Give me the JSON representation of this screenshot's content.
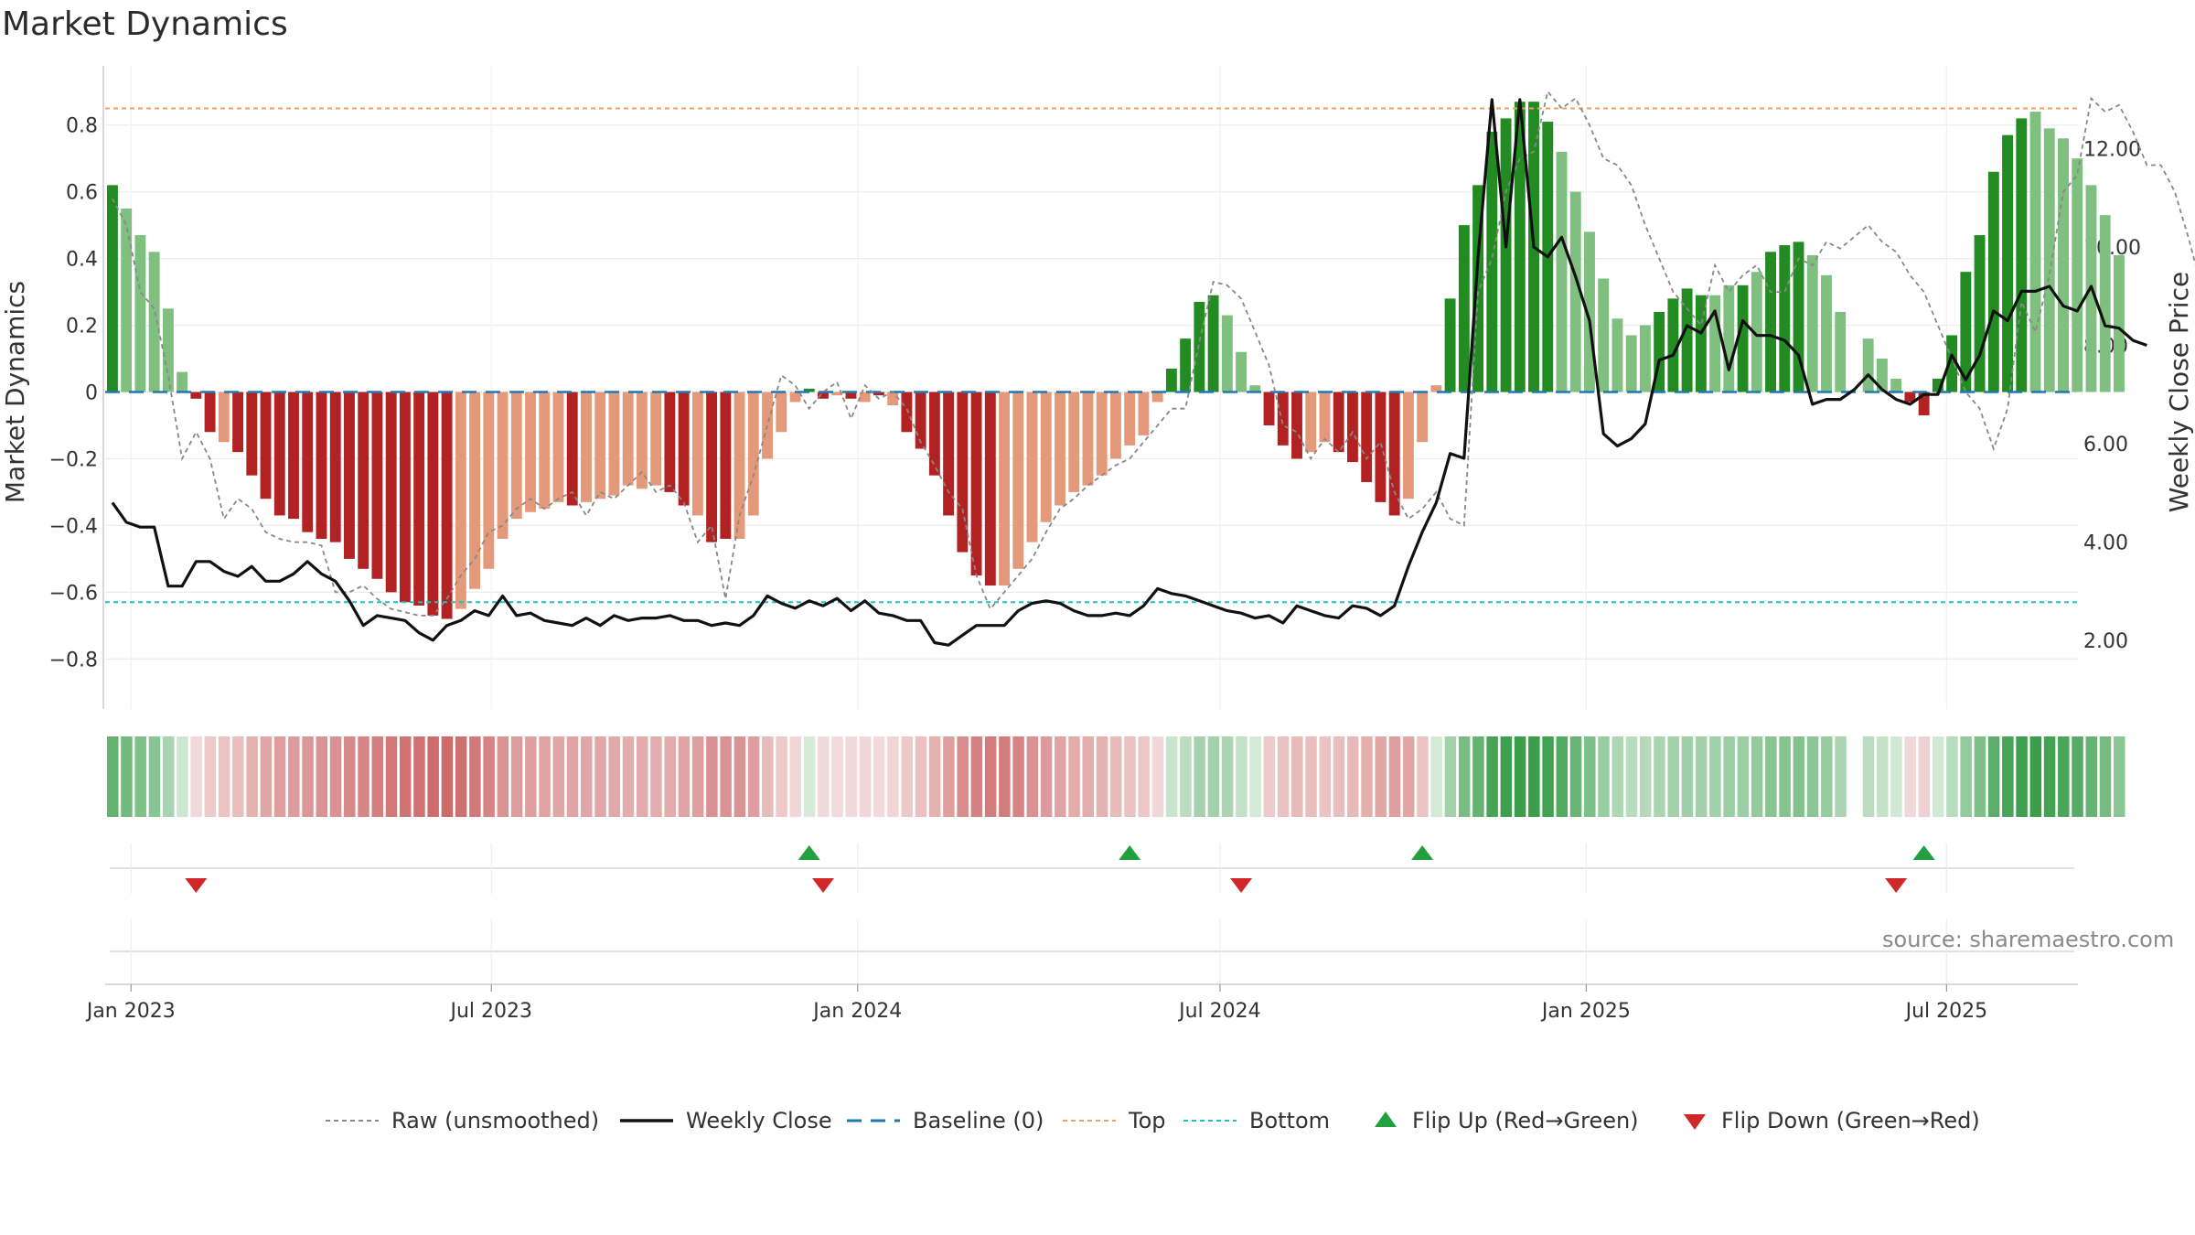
{
  "title": "Market Dynamics",
  "source": "source: sharemaestro.com",
  "colors": {
    "strong_green": "#228b22",
    "light_green": "#7fbf7f",
    "strong_red": "#b22222",
    "light_red": "#e49a7a",
    "close_line": "#111111",
    "raw_line": "#888888",
    "baseline": "#1f77b4",
    "top": "#f0a060",
    "bottom": "#20c0c0",
    "flip_up": "#22a040",
    "flip_down": "#d02828"
  },
  "chart_data": {
    "type": "bar",
    "title": "Market Dynamics",
    "ylabel": "Market Dynamics",
    "y2label": "Weekly Close Price",
    "ylim": [
      -0.95,
      0.95
    ],
    "y2lim": [
      0.6,
      13.5
    ],
    "y_ticks": [
      -0.8,
      -0.6,
      -0.4,
      -0.2,
      0,
      0.2,
      0.4,
      0.6,
      0.8
    ],
    "y_tick_labels": [
      "−0.8",
      "−0.6",
      "−0.4",
      "−0.2",
      "0",
      "0.2",
      "0.4",
      "0.6",
      "0.8"
    ],
    "y2_ticks": [
      2,
      4,
      6,
      8,
      10,
      12
    ],
    "y2_tick_labels": [
      "2.00",
      "4.00",
      "6.00",
      "8.00",
      "10.00",
      "12.00"
    ],
    "x_range": [
      "2022-12-19",
      "2025-09-05"
    ],
    "x_ticks": [
      {
        "date": "2023-01-01",
        "label": "Jan 2023"
      },
      {
        "date": "2023-07-01",
        "label": "Jul 2023"
      },
      {
        "date": "2024-01-01",
        "label": "Jan 2024"
      },
      {
        "date": "2024-07-01",
        "label": "Jul 2024"
      },
      {
        "date": "2025-01-01",
        "label": "Jan 2025"
      },
      {
        "date": "2025-07-01",
        "label": "Jul 2025"
      }
    ],
    "grid": true,
    "legend_position": "bottom",
    "reference_lines": {
      "baseline": 0,
      "top": 0.85,
      "bottom": -0.63
    },
    "series": [
      {
        "name": "Raw (unsmoothed)",
        "start": "2022-12-19",
        "step_days": 7,
        "missing_index": 125,
        "values": [
          0.58,
          0.5,
          0.3,
          0.25,
          0.05,
          -0.2,
          -0.12,
          -0.2,
          -0.38,
          -0.32,
          -0.35,
          -0.42,
          -0.44,
          -0.45,
          -0.45,
          -0.46,
          -0.6,
          -0.6,
          -0.58,
          -0.62,
          -0.65,
          -0.66,
          -0.67,
          -0.67,
          -0.62,
          -0.55,
          -0.5,
          -0.42,
          -0.4,
          -0.35,
          -0.32,
          -0.35,
          -0.32,
          -0.3,
          -0.37,
          -0.3,
          -0.32,
          -0.28,
          -0.24,
          -0.3,
          -0.28,
          -0.33,
          -0.45,
          -0.4,
          -0.62,
          -0.37,
          -0.25,
          -0.1,
          0.05,
          0.02,
          -0.05,
          0.0,
          0.03,
          -0.08,
          0.02,
          -0.02,
          0.0,
          -0.05,
          -0.15,
          -0.22,
          -0.3,
          -0.35,
          -0.55,
          -0.65,
          -0.6,
          -0.55,
          -0.5,
          -0.42,
          -0.35,
          -0.32,
          -0.28,
          -0.25,
          -0.22,
          -0.2,
          -0.15,
          -0.1,
          -0.05,
          -0.05,
          0.15,
          0.33,
          0.32,
          0.28,
          0.18,
          0.08,
          -0.1,
          -0.12,
          -0.2,
          -0.14,
          -0.18,
          -0.12,
          -0.2,
          -0.15,
          -0.3,
          -0.38,
          -0.35,
          -0.3,
          -0.38,
          -0.4,
          0.3,
          0.4,
          0.6,
          0.7,
          0.72,
          0.9,
          0.85,
          0.88,
          0.8,
          0.7,
          0.68,
          0.62,
          0.5,
          0.4,
          0.3,
          0.25,
          0.2,
          0.38,
          0.3,
          0.35,
          0.38,
          0.3,
          0.3,
          0.4,
          0.38,
          0.45,
          0.43,
          0.5,
          0.45,
          0.42,
          0.35,
          0.3,
          0.2,
          0.1,
          0.0,
          -0.05,
          -0.17,
          -0.05,
          0.27,
          0.18,
          0.35,
          0.6,
          0.65,
          0.88,
          0.84,
          0.86,
          0.78,
          0.68,
          0.68,
          0.6,
          0.46,
          0.3,
          0.25
        ]
      },
      {
        "name": "Market Dynamics (smoothed)",
        "start": "2022-12-19",
        "step_days": 7,
        "missing_index": 125,
        "values": [
          0.62,
          0.55,
          0.47,
          0.42,
          0.25,
          0.06,
          -0.02,
          -0.12,
          -0.15,
          -0.18,
          -0.25,
          -0.32,
          -0.37,
          -0.38,
          -0.42,
          -0.44,
          -0.45,
          -0.5,
          -0.53,
          -0.56,
          -0.6,
          -0.63,
          -0.64,
          -0.67,
          -0.68,
          -0.65,
          -0.59,
          -0.53,
          -0.44,
          -0.38,
          -0.36,
          -0.35,
          -0.33,
          -0.34,
          -0.33,
          -0.32,
          -0.31,
          -0.28,
          -0.29,
          -0.28,
          -0.3,
          -0.34,
          -0.37,
          -0.45,
          -0.44,
          -0.44,
          -0.37,
          -0.2,
          -0.12,
          -0.03,
          0.01,
          -0.02,
          -0.01,
          -0.02,
          -0.03,
          -0.01,
          -0.04,
          -0.12,
          -0.17,
          -0.25,
          -0.37,
          -0.48,
          -0.55,
          -0.58,
          -0.58,
          -0.53,
          -0.45,
          -0.39,
          -0.34,
          -0.3,
          -0.28,
          -0.25,
          -0.2,
          -0.16,
          -0.13,
          -0.03,
          0.07,
          0.16,
          0.27,
          0.29,
          0.23,
          0.12,
          0.02,
          -0.1,
          -0.16,
          -0.2,
          -0.18,
          -0.15,
          -0.18,
          -0.21,
          -0.27,
          -0.33,
          -0.37,
          -0.32,
          -0.15,
          0.02,
          0.28,
          0.5,
          0.62,
          0.78,
          0.82,
          0.87,
          0.87,
          0.81,
          0.72,
          0.6,
          0.48,
          0.34,
          0.22,
          0.17,
          0.2,
          0.24,
          0.28,
          0.31,
          0.29,
          0.29,
          0.32,
          0.32,
          0.36,
          0.42,
          0.44,
          0.45,
          0.41,
          0.35,
          0.24,
          0.16,
          0.1,
          0.04,
          -0.03,
          -0.07,
          0.04,
          0.17,
          0.36,
          0.47,
          0.66,
          0.77,
          0.82,
          0.84,
          0.79,
          0.76,
          0.7,
          0.62,
          0.53,
          0.41
        ]
      },
      {
        "name": "Weekly Close",
        "start": "2022-12-19",
        "step_days": 7,
        "axis": "right",
        "values": [
          4.8,
          4.4,
          4.3,
          4.3,
          3.1,
          3.1,
          3.6,
          3.6,
          3.4,
          3.3,
          3.5,
          3.2,
          3.2,
          3.35,
          3.6,
          3.35,
          3.2,
          2.8,
          2.3,
          2.5,
          2.45,
          2.4,
          2.15,
          2.0,
          2.3,
          2.4,
          2.6,
          2.5,
          2.9,
          2.5,
          2.55,
          2.4,
          2.35,
          2.3,
          2.45,
          2.3,
          2.5,
          2.4,
          2.45,
          2.45,
          2.5,
          2.4,
          2.4,
          2.3,
          2.35,
          2.3,
          2.5,
          2.9,
          2.75,
          2.65,
          2.8,
          2.7,
          2.85,
          2.6,
          2.8,
          2.55,
          2.5,
          2.4,
          2.4,
          1.95,
          1.9,
          2.1,
          2.3,
          2.3,
          2.3,
          2.6,
          2.75,
          2.8,
          2.75,
          2.6,
          2.5,
          2.5,
          2.55,
          2.5,
          2.7,
          3.05,
          2.95,
          2.9,
          2.8,
          2.7,
          2.6,
          2.55,
          2.45,
          2.5,
          2.35,
          2.7,
          2.6,
          2.5,
          2.45,
          2.7,
          2.65,
          2.5,
          2.7,
          3.5,
          4.2,
          4.8,
          5.8,
          5.7,
          9.8,
          13.0,
          10.0,
          13.0,
          10.0,
          9.8,
          10.2,
          9.4,
          8.5,
          6.2,
          5.95,
          6.1,
          6.4,
          7.7,
          7.8,
          8.4,
          8.25,
          8.7,
          7.5,
          8.5,
          8.2,
          8.2,
          8.1,
          7.8,
          6.8,
          6.9,
          6.9,
          7.1,
          7.4,
          7.1,
          6.9,
          6.8,
          7.0,
          7.0,
          7.8,
          7.3,
          7.8,
          8.7,
          8.5,
          9.1,
          9.1,
          9.2,
          8.8,
          8.7,
          9.2,
          8.4,
          8.35,
          8.1,
          8.0
        ]
      }
    ],
    "bar_colors": [
      "SG",
      "LG",
      "LG",
      "LG",
      "LG",
      "LG",
      "SR",
      "SR",
      "LR",
      "SR",
      "SR",
      "SR",
      "SR",
      "SR",
      "SR",
      "SR",
      "SR",
      "SR",
      "SR",
      "SR",
      "SR",
      "SR",
      "SR",
      "SR",
      "SR",
      "LR",
      "LR",
      "LR",
      "LR",
      "LR",
      "LR",
      "LR",
      "LR",
      "SR",
      "LR",
      "LR",
      "LR",
      "LR",
      "LR",
      "LR",
      "SR",
      "SR",
      "LR",
      "SR",
      "SR",
      "LR",
      "LR",
      "LR",
      "LR",
      "LR",
      "SG",
      "SR",
      "LR",
      "SR",
      "LR",
      "SR",
      "LR",
      "SR",
      "SR",
      "SR",
      "SR",
      "SR",
      "SR",
      "SR",
      "LR",
      "LR",
      "LR",
      "LR",
      "LR",
      "LR",
      "LR",
      "LR",
      "LR",
      "LR",
      "LR",
      "LR",
      "SG",
      "SG",
      "SG",
      "SG",
      "LG",
      "LG",
      "LG",
      "SR",
      "SR",
      "SR",
      "LR",
      "LR",
      "SR",
      "SR",
      "SR",
      "SR",
      "SR",
      "LR",
      "LR",
      "LR",
      "SG",
      "SG",
      "SG",
      "SG",
      "SG",
      "SG",
      "SG",
      "SG",
      "LG",
      "LG",
      "LG",
      "LG",
      "LG",
      "LG",
      "LG",
      "SG",
      "SG",
      "SG",
      "SG",
      "LG",
      "LG",
      "SG",
      "LG",
      "SG",
      "SG",
      "SG",
      "LG",
      "LG",
      "LG",
      "LG",
      "LG",
      "LG",
      "SR",
      "SR",
      "SG",
      "SG",
      "SG",
      "SG",
      "SG",
      "SG",
      "SG",
      "LG",
      "LG",
      "LG",
      "LG",
      "LG",
      "LG",
      "LG",
      "LG"
    ],
    "flips": {
      "up": [
        "2023-12-04",
        "2024-05-13",
        "2024-10-07",
        "2025-06-16"
      ],
      "down": [
        "2023-01-30",
        "2023-12-11",
        "2024-07-08",
        "2025-06-02"
      ]
    }
  },
  "legend": [
    {
      "key": "raw",
      "label": "Raw (unsmoothed)"
    },
    {
      "key": "close",
      "label": "Weekly Close"
    },
    {
      "key": "baseline",
      "label": "Baseline (0)"
    },
    {
      "key": "top",
      "label": "Top"
    },
    {
      "key": "bottom",
      "label": "Bottom"
    },
    {
      "key": "flip_up",
      "label": "Flip Up (Red→Green)"
    },
    {
      "key": "flip_down",
      "label": "Flip Down (Green→Red)"
    }
  ]
}
